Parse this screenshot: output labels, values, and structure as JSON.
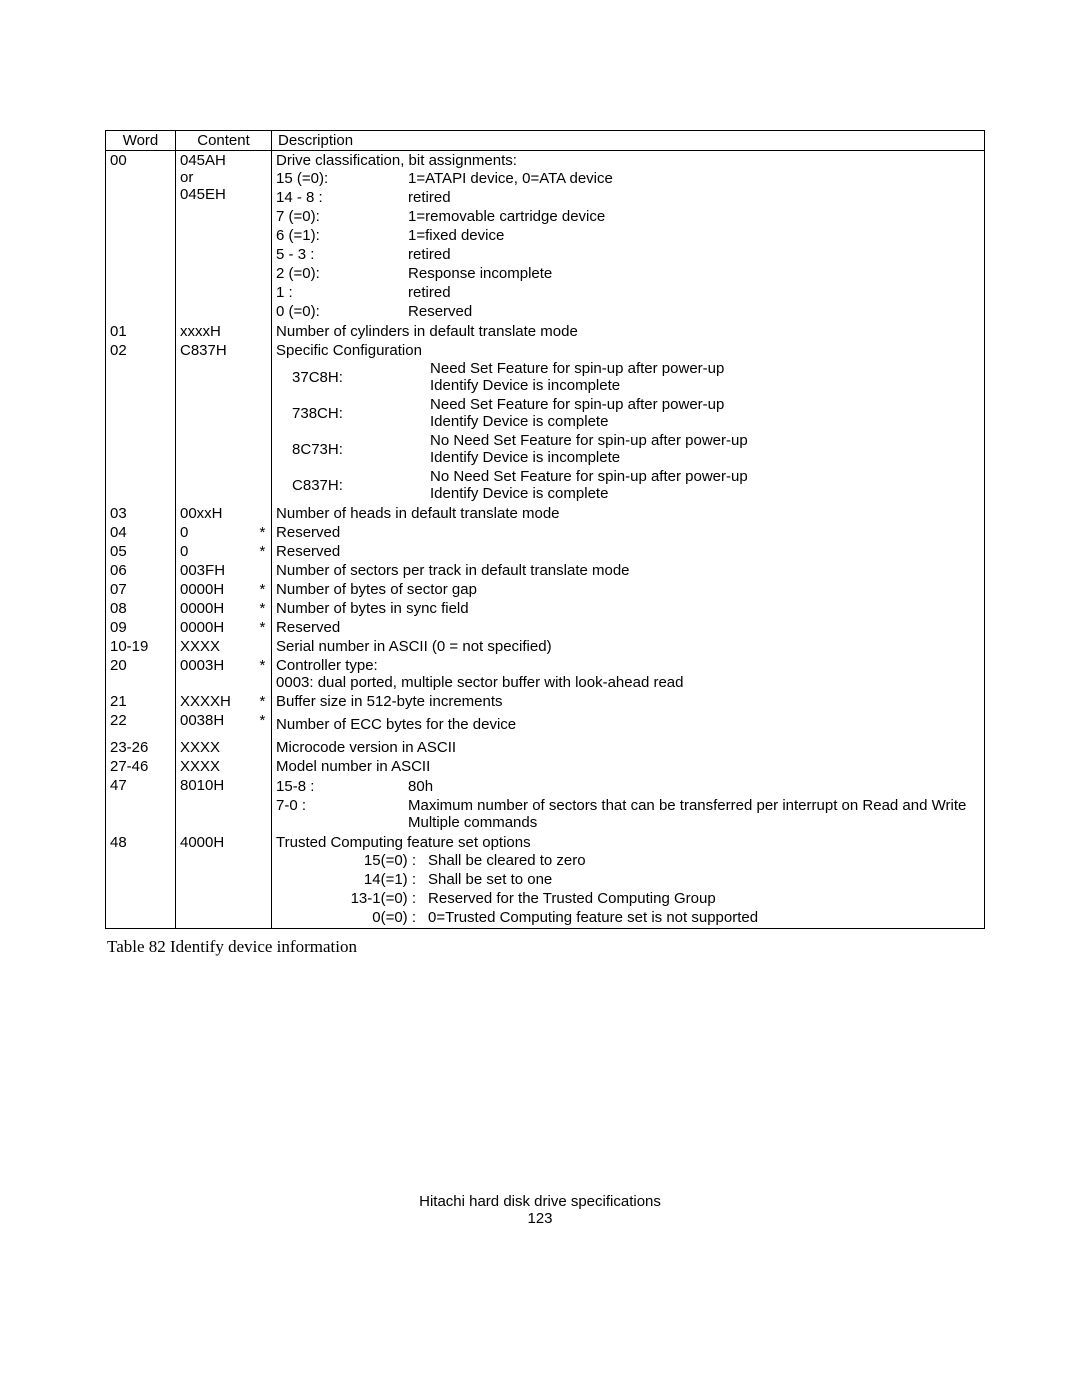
{
  "headers": {
    "word": "Word",
    "content": "Content",
    "description": "Description"
  },
  "caption": "Table 82    Identify device information",
  "footer_line1": "Hitachi hard disk drive specifications",
  "footer_line2": "123",
  "rows": [
    {
      "word": "00",
      "content_lines": [
        "045AH",
        "or",
        "045EH"
      ],
      "star": "",
      "desc_intro": "Drive classification, bit assignments:",
      "bits": [
        {
          "k": "15 (=0):",
          "v": "1=ATAPI device, 0=ATA device"
        },
        {
          "k": "14 - 8 :",
          "v": "retired"
        },
        {
          "k": "7 (=0):",
          "v": "1=removable cartridge device"
        },
        {
          "k": "6 (=1):",
          "v": "1=fixed device"
        },
        {
          "k": "5 - 3 :",
          "v": "retired"
        },
        {
          "k": "2 (=0):",
          "v": "Response incomplete"
        },
        {
          "k": "1 :",
          "v": "retired"
        },
        {
          "k": "0 (=0):",
          "v": "Reserved"
        }
      ]
    },
    {
      "word": "01",
      "content": "xxxxH",
      "star": "",
      "desc": "Number of cylinders in default translate mode"
    },
    {
      "word": "02",
      "content": "C837H",
      "star": "",
      "desc_intro": "Specific Configuration",
      "codes": [
        {
          "k": "37C8H:",
          "v1": "Need Set Feature for spin-up after power-up",
          "v2": "Identify Device is incomplete"
        },
        {
          "k": "738CH:",
          "v1": "Need Set Feature for spin-up after power-up",
          "v2": "Identify Device is complete"
        },
        {
          "k": "8C73H:",
          "v1": "No Need Set Feature for spin-up after power-up",
          "v2": "Identify Device is incomplete"
        },
        {
          "k": "C837H:",
          "v1": "No Need Set Feature for spin-up after power-up",
          "v2": "Identify Device is complete"
        }
      ]
    },
    {
      "word": "03",
      "content": "00xxH",
      "star": "",
      "desc": "Number of heads in default translate mode"
    },
    {
      "word": "04",
      "content": "0",
      "star": "*",
      "desc": "Reserved"
    },
    {
      "word": "05",
      "content": "0",
      "star": "*",
      "desc": "Reserved"
    },
    {
      "word": "06",
      "content": "003FH",
      "star": "",
      "desc": "Number of sectors per track in default translate mode"
    },
    {
      "word": "07",
      "content": "0000H",
      "star": "*",
      "desc": "Number of bytes of sector gap"
    },
    {
      "word": "08",
      "content": "0000H",
      "star": "*",
      "desc": "Number of bytes in sync field"
    },
    {
      "word": "09",
      "content": "0000H",
      "star": "*",
      "desc": "Reserved"
    },
    {
      "word": "10-19",
      "content": "XXXX",
      "star": "",
      "desc": "Serial number in ASCII (0 = not specified)"
    },
    {
      "word": "20",
      "content": "0003H",
      "star": "*",
      "desc_lines": [
        "Controller type:",
        "0003: dual ported, multiple sector buffer with look-ahead read"
      ]
    },
    {
      "word": "21",
      "content": "XXXXH",
      "star": "*",
      "desc": "Buffer size in 512-byte increments"
    },
    {
      "word": "22",
      "content": "0038H",
      "star": "*",
      "desc": "Number of ECC bytes for the device",
      "pad": true
    },
    {
      "word": "23-26",
      "content": "XXXX",
      "star": "",
      "desc": "Microcode version in ASCII"
    },
    {
      "word": "27-46",
      "content": "XXXX",
      "star": "",
      "desc": "Model number in ASCII"
    },
    {
      "word": "47",
      "content": "8010H",
      "star": "",
      "bits2": [
        {
          "k": "15-8 :",
          "v": "80h"
        },
        {
          "k": "7-0 :",
          "v": "Maximum number of sectors that can be transferred per interrupt on Read and Write Multiple commands"
        }
      ]
    },
    {
      "word": "48",
      "content": "4000H",
      "star": "",
      "desc_intro": "Trusted Computing feature set options",
      "bits3": [
        {
          "k": "15(=0) :",
          "v": "Shall be cleared to zero"
        },
        {
          "k": "14(=1) :",
          "v": "Shall be set to one"
        },
        {
          "k": "13-1(=0) :",
          "v": "Reserved for the Trusted Computing Group"
        },
        {
          "k": "0(=0) :",
          "v": "0=Trusted Computing feature set is not supported"
        }
      ]
    }
  ]
}
